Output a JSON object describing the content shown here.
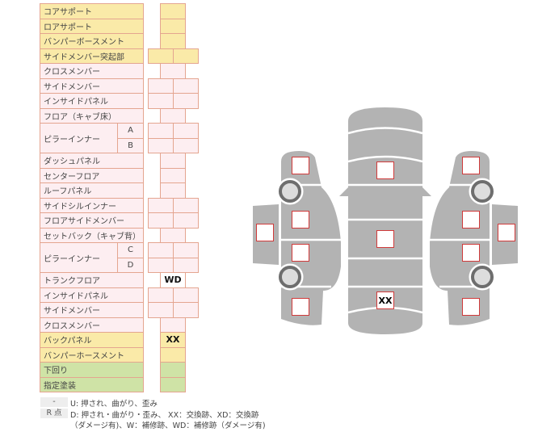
{
  "colors": {
    "yellow": "#faeaa8",
    "pink": "#fdeef1",
    "green": "#cfe3a6",
    "border": "#e4a590",
    "car": "#b3b3b3",
    "marker": "#d03a3a"
  },
  "rows": [
    {
      "label": "コアサポート",
      "type": "single",
      "color": "y",
      "value": ""
    },
    {
      "label": "ロアサポート",
      "type": "single",
      "color": "y",
      "value": ""
    },
    {
      "label": "バンパーボースメント",
      "type": "single",
      "color": "y",
      "value": ""
    },
    {
      "label": "サイドメンバー突起部",
      "type": "double",
      "color": "y",
      "value": ""
    },
    {
      "label": "クロスメンバー",
      "type": "single",
      "color": "p",
      "value": ""
    },
    {
      "label": "サイドメンバー",
      "type": "double",
      "color": "p",
      "value": ""
    },
    {
      "label": "インサイドパネル",
      "type": "double",
      "color": "p",
      "value": ""
    },
    {
      "label": "フロア（キャブ床）",
      "type": "single",
      "color": "p",
      "value": ""
    },
    {
      "label": "ピラーインナー",
      "sub": "A",
      "type": "double",
      "color": "p",
      "value": ""
    },
    {
      "label": "",
      "sub": "B",
      "type": "double",
      "color": "p",
      "value": ""
    },
    {
      "label": "ダッシュパネル",
      "type": "single",
      "color": "p",
      "value": ""
    },
    {
      "label": "センターフロア",
      "type": "single",
      "color": "p",
      "value": ""
    },
    {
      "label": "ルーフパネル",
      "type": "single",
      "color": "p",
      "value": ""
    },
    {
      "label": "サイドシルインナー",
      "type": "double",
      "color": "p",
      "value": ""
    },
    {
      "label": "フロアサイドメンバー",
      "type": "double",
      "color": "p",
      "value": ""
    },
    {
      "label": "セットバック（キャブ背）",
      "type": "single",
      "color": "p",
      "value": ""
    },
    {
      "label": "ピラーインナー",
      "sub": "C",
      "type": "double",
      "color": "p",
      "value": ""
    },
    {
      "label": "",
      "sub": "D",
      "type": "double",
      "color": "p",
      "value": ""
    },
    {
      "label": "トランクフロア",
      "type": "single",
      "color": "w",
      "value": "WD"
    },
    {
      "label": "インサイドパネル",
      "type": "double",
      "color": "p",
      "value": ""
    },
    {
      "label": "サイドメンバー",
      "type": "double",
      "color": "p",
      "value": ""
    },
    {
      "label": "クロスメンバー",
      "type": "single",
      "color": "p",
      "value": ""
    },
    {
      "label": "バックパネル",
      "type": "single",
      "color": "y",
      "value": "XX"
    },
    {
      "label": "バンパーホースメント",
      "type": "single",
      "color": "y",
      "value": ""
    },
    {
      "label": "下回り",
      "type": "single",
      "color": "g",
      "value": ""
    },
    {
      "label": "指定塗装",
      "type": "single",
      "color": "g",
      "value": ""
    }
  ],
  "legend": {
    "key1": "-",
    "text1": "U: 押され、曲がり、歪み",
    "key2": "R 点",
    "text2": "D: 押され・曲がり・歪み、 XX：交換跡、XD：交換跡",
    "text3": "（ダメージ有)、W：補修跡、WD：補修跡（ダメージ有)"
  },
  "diagram": {
    "markers": [
      "",
      "",
      "",
      "",
      "",
      "",
      "",
      "",
      "",
      "",
      "",
      "",
      "",
      "XX"
    ]
  }
}
